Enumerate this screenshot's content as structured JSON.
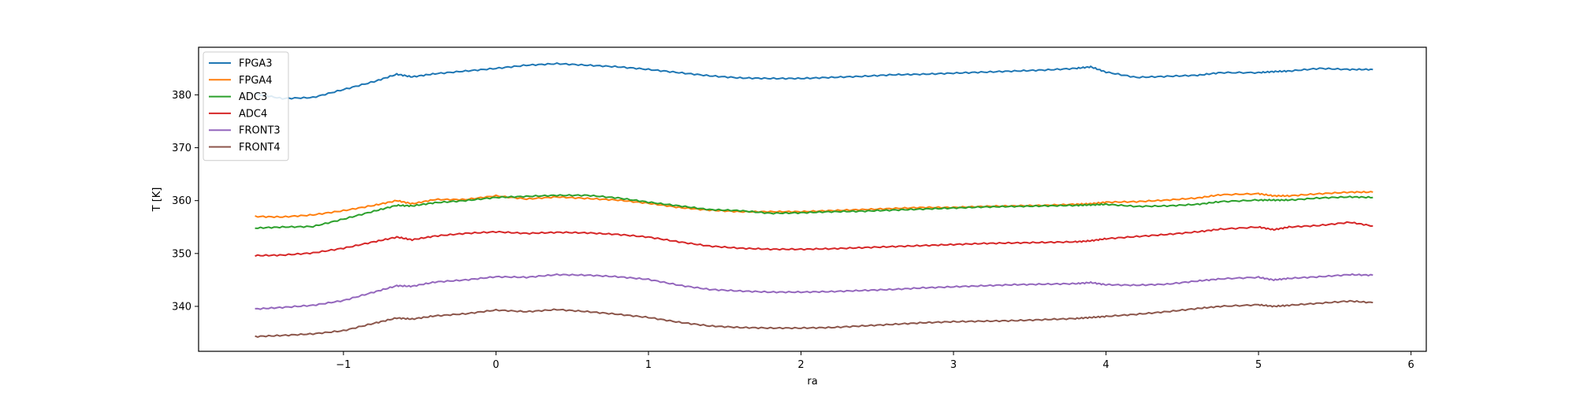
{
  "chart_data": {
    "type": "line",
    "title": "",
    "xlabel": "ra",
    "ylabel": "T [K]",
    "xlim": [
      -1.95,
      6.1
    ],
    "ylim": [
      331.5,
      389
    ],
    "x_ticks": [
      -1,
      0,
      1,
      2,
      3,
      4,
      5,
      6
    ],
    "y_ticks": [
      340,
      350,
      360,
      370,
      380
    ],
    "x_tick_labels": [
      "−1",
      "0",
      "1",
      "2",
      "3",
      "4",
      "5",
      "6"
    ],
    "y_tick_labels": [
      "340",
      "350",
      "360",
      "370",
      "380"
    ],
    "grid": false,
    "legend_position": "top-left",
    "x": [
      -1.58,
      -1.4,
      -1.2,
      -1.0,
      -0.8,
      -0.65,
      -0.55,
      -0.4,
      -0.2,
      0.0,
      0.2,
      0.4,
      0.6,
      0.8,
      1.0,
      1.2,
      1.4,
      1.6,
      1.8,
      2.0,
      2.2,
      2.4,
      2.6,
      2.8,
      3.0,
      3.2,
      3.4,
      3.6,
      3.8,
      3.9,
      4.0,
      4.2,
      4.4,
      4.6,
      4.75,
      5.0,
      5.1,
      5.2,
      5.4,
      5.6,
      5.75
    ],
    "series": [
      {
        "name": "FPGA3",
        "color": "#1f77b4",
        "values": [
          380.2,
          379.3,
          379.5,
          381.0,
          382.5,
          383.9,
          383.4,
          384.0,
          384.5,
          385.0,
          385.6,
          385.9,
          385.6,
          385.3,
          384.8,
          384.2,
          383.6,
          383.2,
          383.1,
          383.1,
          383.3,
          383.5,
          383.8,
          383.9,
          384.1,
          384.3,
          384.5,
          384.7,
          385.0,
          385.3,
          384.3,
          383.3,
          383.5,
          383.7,
          384.2,
          384.2,
          384.4,
          384.5,
          385.0,
          384.8,
          384.8
        ]
      },
      {
        "name": "FPGA4",
        "color": "#ff7f0e",
        "values": [
          357.0,
          356.9,
          357.3,
          358.1,
          359.1,
          360.0,
          359.4,
          360.2,
          360.2,
          360.9,
          360.3,
          360.7,
          360.4,
          360.1,
          359.5,
          358.7,
          358.2,
          357.9,
          357.9,
          357.9,
          358.1,
          358.3,
          358.5,
          358.7,
          358.7,
          358.9,
          359.0,
          359.1,
          359.3,
          359.4,
          359.7,
          359.8,
          360.1,
          360.5,
          361.1,
          361.3,
          360.9,
          360.9,
          361.3,
          361.6,
          361.6
        ]
      },
      {
        "name": "ADC3",
        "color": "#2ca02c",
        "values": [
          354.8,
          355.0,
          355.1,
          356.5,
          358.0,
          359.1,
          359.0,
          359.6,
          360.0,
          360.6,
          360.8,
          361.0,
          361.0,
          360.5,
          359.7,
          359.0,
          358.3,
          358.1,
          357.6,
          357.7,
          357.9,
          358.0,
          358.2,
          358.4,
          358.6,
          358.8,
          358.9,
          359.0,
          359.1,
          359.2,
          359.3,
          358.9,
          359.0,
          359.3,
          359.8,
          360.1,
          360.1,
          360.1,
          360.5,
          360.7,
          360.6
        ]
      },
      {
        "name": "ADC4",
        "color": "#d62728",
        "values": [
          349.6,
          349.7,
          350.1,
          351.0,
          352.2,
          353.1,
          352.6,
          353.3,
          353.8,
          354.1,
          353.8,
          354.0,
          353.9,
          353.6,
          353.1,
          352.2,
          351.4,
          351.0,
          350.8,
          350.8,
          350.9,
          351.1,
          351.3,
          351.5,
          351.7,
          351.9,
          352.0,
          352.1,
          352.2,
          352.4,
          352.8,
          353.2,
          353.6,
          354.1,
          354.6,
          355.0,
          354.5,
          355.0,
          355.3,
          355.9,
          355.2
        ]
      },
      {
        "name": "FRONT3",
        "color": "#9467bd",
        "values": [
          339.5,
          339.8,
          340.2,
          341.1,
          342.7,
          343.9,
          343.8,
          344.6,
          345.0,
          345.6,
          345.5,
          346.0,
          345.9,
          345.6,
          345.1,
          344.0,
          343.2,
          342.9,
          342.7,
          342.7,
          342.8,
          343.0,
          343.2,
          343.5,
          343.7,
          343.9,
          344.1,
          344.2,
          344.3,
          344.5,
          344.1,
          344.0,
          344.2,
          344.8,
          345.2,
          345.5,
          345.0,
          345.3,
          345.6,
          346.0,
          345.9
        ]
      },
      {
        "name": "FRONT4",
        "color": "#8c564b",
        "values": [
          334.3,
          334.5,
          334.8,
          335.4,
          336.8,
          337.8,
          337.6,
          338.2,
          338.6,
          339.3,
          339.0,
          339.4,
          339.0,
          338.5,
          337.9,
          337.0,
          336.3,
          336.0,
          335.9,
          335.9,
          336.0,
          336.3,
          336.6,
          336.9,
          337.1,
          337.2,
          337.3,
          337.5,
          337.7,
          337.9,
          338.1,
          338.5,
          339.0,
          339.6,
          340.0,
          340.3,
          340.0,
          340.2,
          340.6,
          341.0,
          340.7
        ]
      }
    ]
  }
}
